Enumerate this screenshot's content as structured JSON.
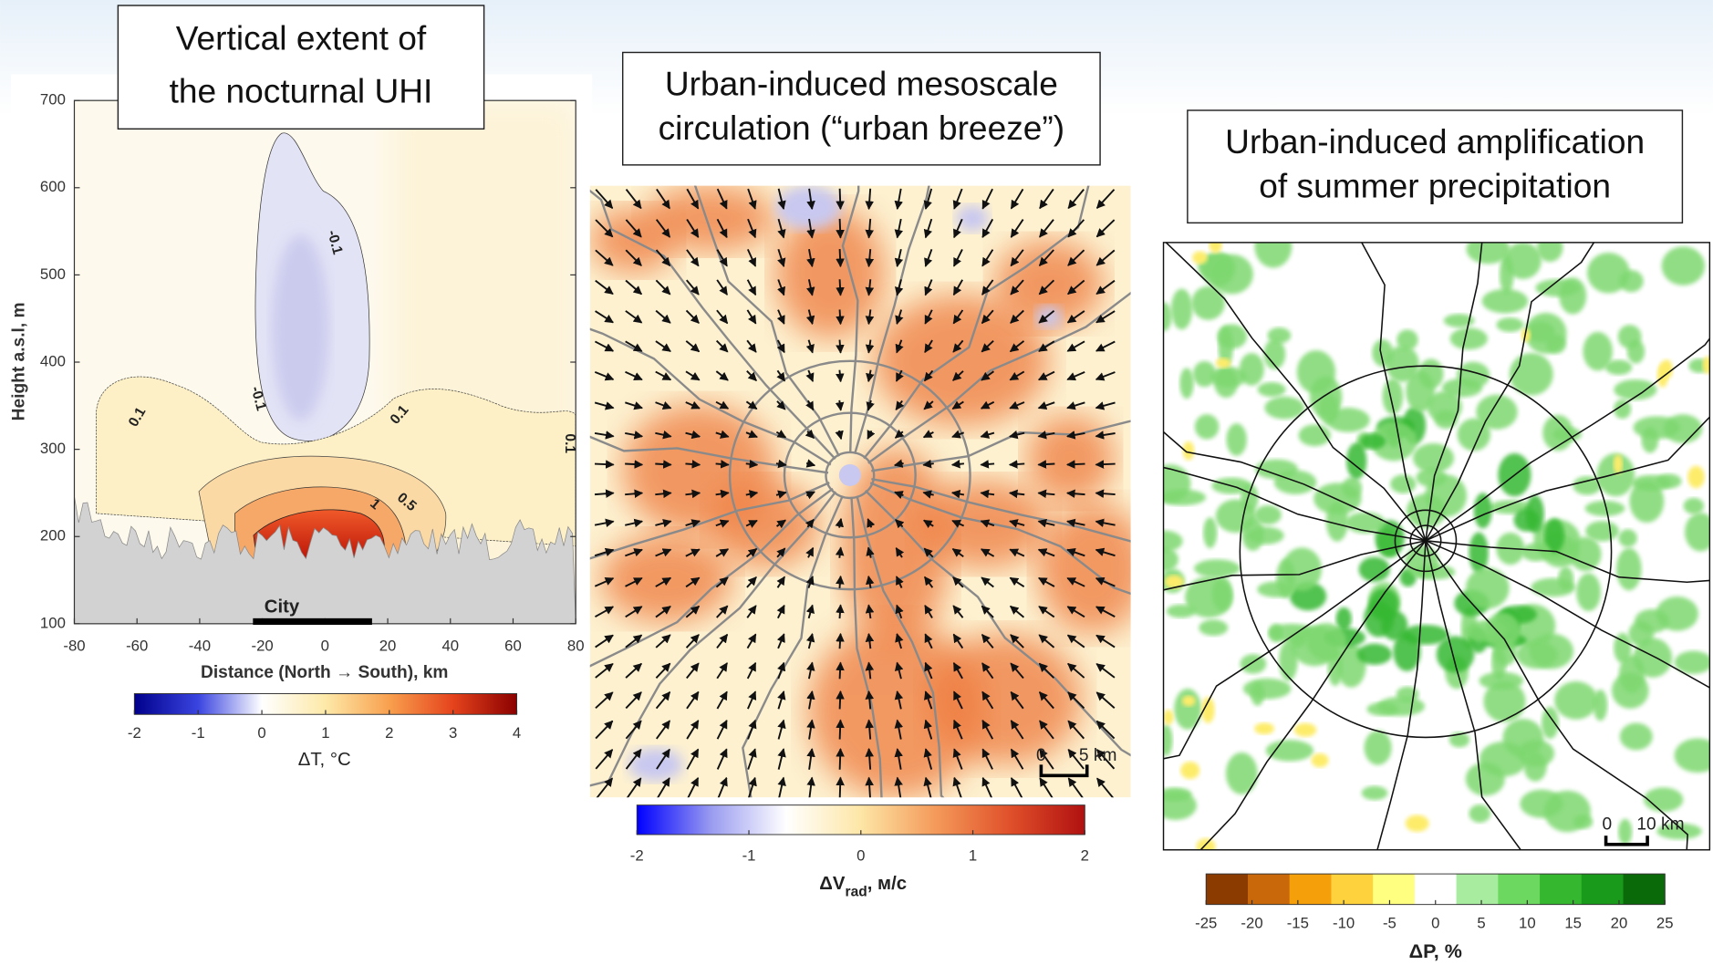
{
  "chart_data": [
    {
      "type": "contour",
      "title": [
        "Vertical extent of",
        "the nocturnal UHI"
      ],
      "xlabel": "Distance (North → South), km",
      "ylabel": "Height a.s.l, m",
      "xlim": [
        -80,
        80
      ],
      "xticks": [
        -80,
        -60,
        -40,
        -20,
        0,
        20,
        40,
        60,
        80
      ],
      "ylim": [
        100,
        700
      ],
      "yticks": [
        100,
        200,
        300,
        400,
        500,
        600,
        700
      ],
      "contour_labels": [
        0.1,
        -0.1,
        -0.1,
        0.1,
        0.1,
        0.5,
        1
      ],
      "city": {
        "label": "City",
        "xrange": [
          -23,
          15
        ]
      },
      "colorbar": {
        "label": "ΔT, °C",
        "lim": [
          -2,
          4
        ],
        "ticks": [
          -2,
          -1,
          0,
          1,
          2,
          3,
          4
        ],
        "colormap": [
          "#00008b",
          "#3a44e0",
          "#ffffff",
          "#fde9a8",
          "#f8a04e",
          "#e5431c",
          "#8b0000"
        ]
      }
    },
    {
      "type": "vector-map",
      "title": [
        "Urban-induced mesoscale",
        "circulation (“urban breeze”)"
      ],
      "scale": [
        "0",
        "5 km"
      ],
      "colorbar": {
        "label": "ΔV",
        "label_sub": "rad",
        "label_unit": ", м/с",
        "lim": [
          -2,
          2
        ],
        "ticks": [
          -2,
          -1,
          0,
          1,
          2
        ],
        "colormap": [
          "#0000ff",
          "#9a9cf0",
          "#ffffff",
          "#fde6a6",
          "#f49a5a",
          "#e0502a",
          "#b01010"
        ]
      }
    },
    {
      "type": "map",
      "title": [
        "Urban-induced amplification",
        "of summer precipitation"
      ],
      "scale": [
        "0",
        "10 km"
      ],
      "colorbar": {
        "label": "ΔP, %",
        "lim": [
          -25,
          25
        ],
        "ticks": [
          -25,
          -20,
          -15,
          -10,
          -5,
          0,
          5,
          10,
          15,
          20,
          25
        ],
        "colors": [
          "#8b3a00",
          "#c8680a",
          "#f5a00a",
          "#fdd23c",
          "#ffff80",
          "#ffffff",
          "#a8eca0",
          "#6cd860",
          "#35b830",
          "#1a9a1a",
          "#0a6a0a"
        ]
      }
    }
  ]
}
